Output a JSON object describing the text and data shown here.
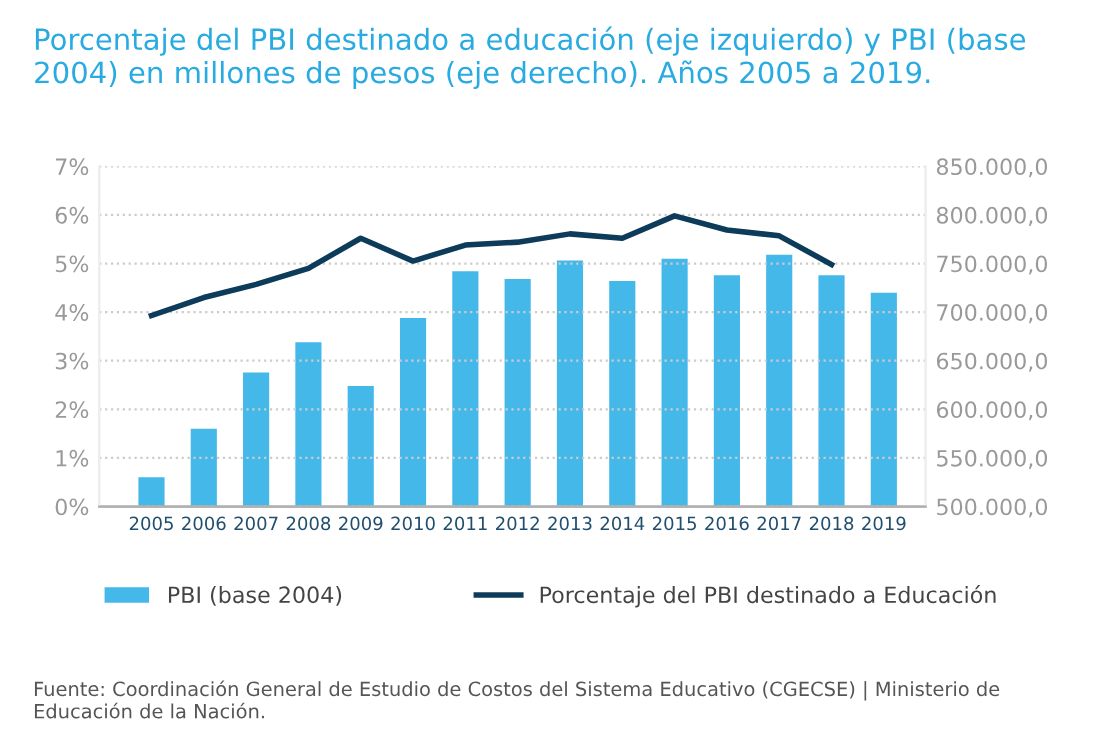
{
  "chart_data": {
    "type": "bar",
    "title": "Porcentaje del PBI destinado a educación (eje izquierdo) y PBI (base 2004) en millones de pesos (eje derecho). Años 2005 a 2019.",
    "categories": [
      "2005",
      "2006",
      "2007",
      "2008",
      "2009",
      "2010",
      "2011",
      "2012",
      "2013",
      "2014",
      "2015",
      "2016",
      "2017",
      "2018",
      "2019"
    ],
    "series": [
      {
        "name": "PBI (base 2004)",
        "axis": "y2",
        "color": "#45b8ea",
        "values": [
          530000,
          580000,
          638000,
          669000,
          624000,
          694000,
          742000,
          734000,
          753000,
          732000,
          755000,
          738000,
          759000,
          738000,
          720000
        ]
      },
      {
        "name": "Porcentaje del PBI destinado a Educación",
        "type": "line",
        "axis": "y",
        "color": "#0d3b5a",
        "values": [
          3.93,
          4.3,
          4.57,
          4.9,
          5.52,
          5.05,
          5.38,
          5.44,
          5.61,
          5.52,
          5.98,
          5.69,
          5.57,
          4.98,
          null
        ]
      }
    ],
    "ylim": [
      0,
      7
    ],
    "yticks": [
      {
        "value": 0,
        "label": "0%"
      },
      {
        "value": 1,
        "label": "1%"
      },
      {
        "value": 2,
        "label": "2%"
      },
      {
        "value": 3,
        "label": "3%"
      },
      {
        "value": 4,
        "label": "4%"
      },
      {
        "value": 5,
        "label": "5%"
      },
      {
        "value": 6,
        "label": "6%"
      },
      {
        "value": 7,
        "label": "7%"
      }
    ],
    "y2lim": [
      500000,
      850000
    ],
    "y2ticks": [
      {
        "value": 500000,
        "label": "500.000,0"
      },
      {
        "value": 550000,
        "label": "550.000,0"
      },
      {
        "value": 600000,
        "label": "600.000,0"
      },
      {
        "value": 650000,
        "label": "650.000,0"
      },
      {
        "value": 700000,
        "label": "700.000,0"
      },
      {
        "value": 750000,
        "label": "750.000,0"
      },
      {
        "value": 800000,
        "label": "800.000,0"
      },
      {
        "value": 850000,
        "label": "850.000,0"
      }
    ],
    "grid": "y",
    "legend": "bottom",
    "annotations": [
      "Fuente: Coordinación General de Estudio de Costos del Sistema Educativo (CGECSE) | Ministerio de Educación de la Nación."
    ]
  }
}
